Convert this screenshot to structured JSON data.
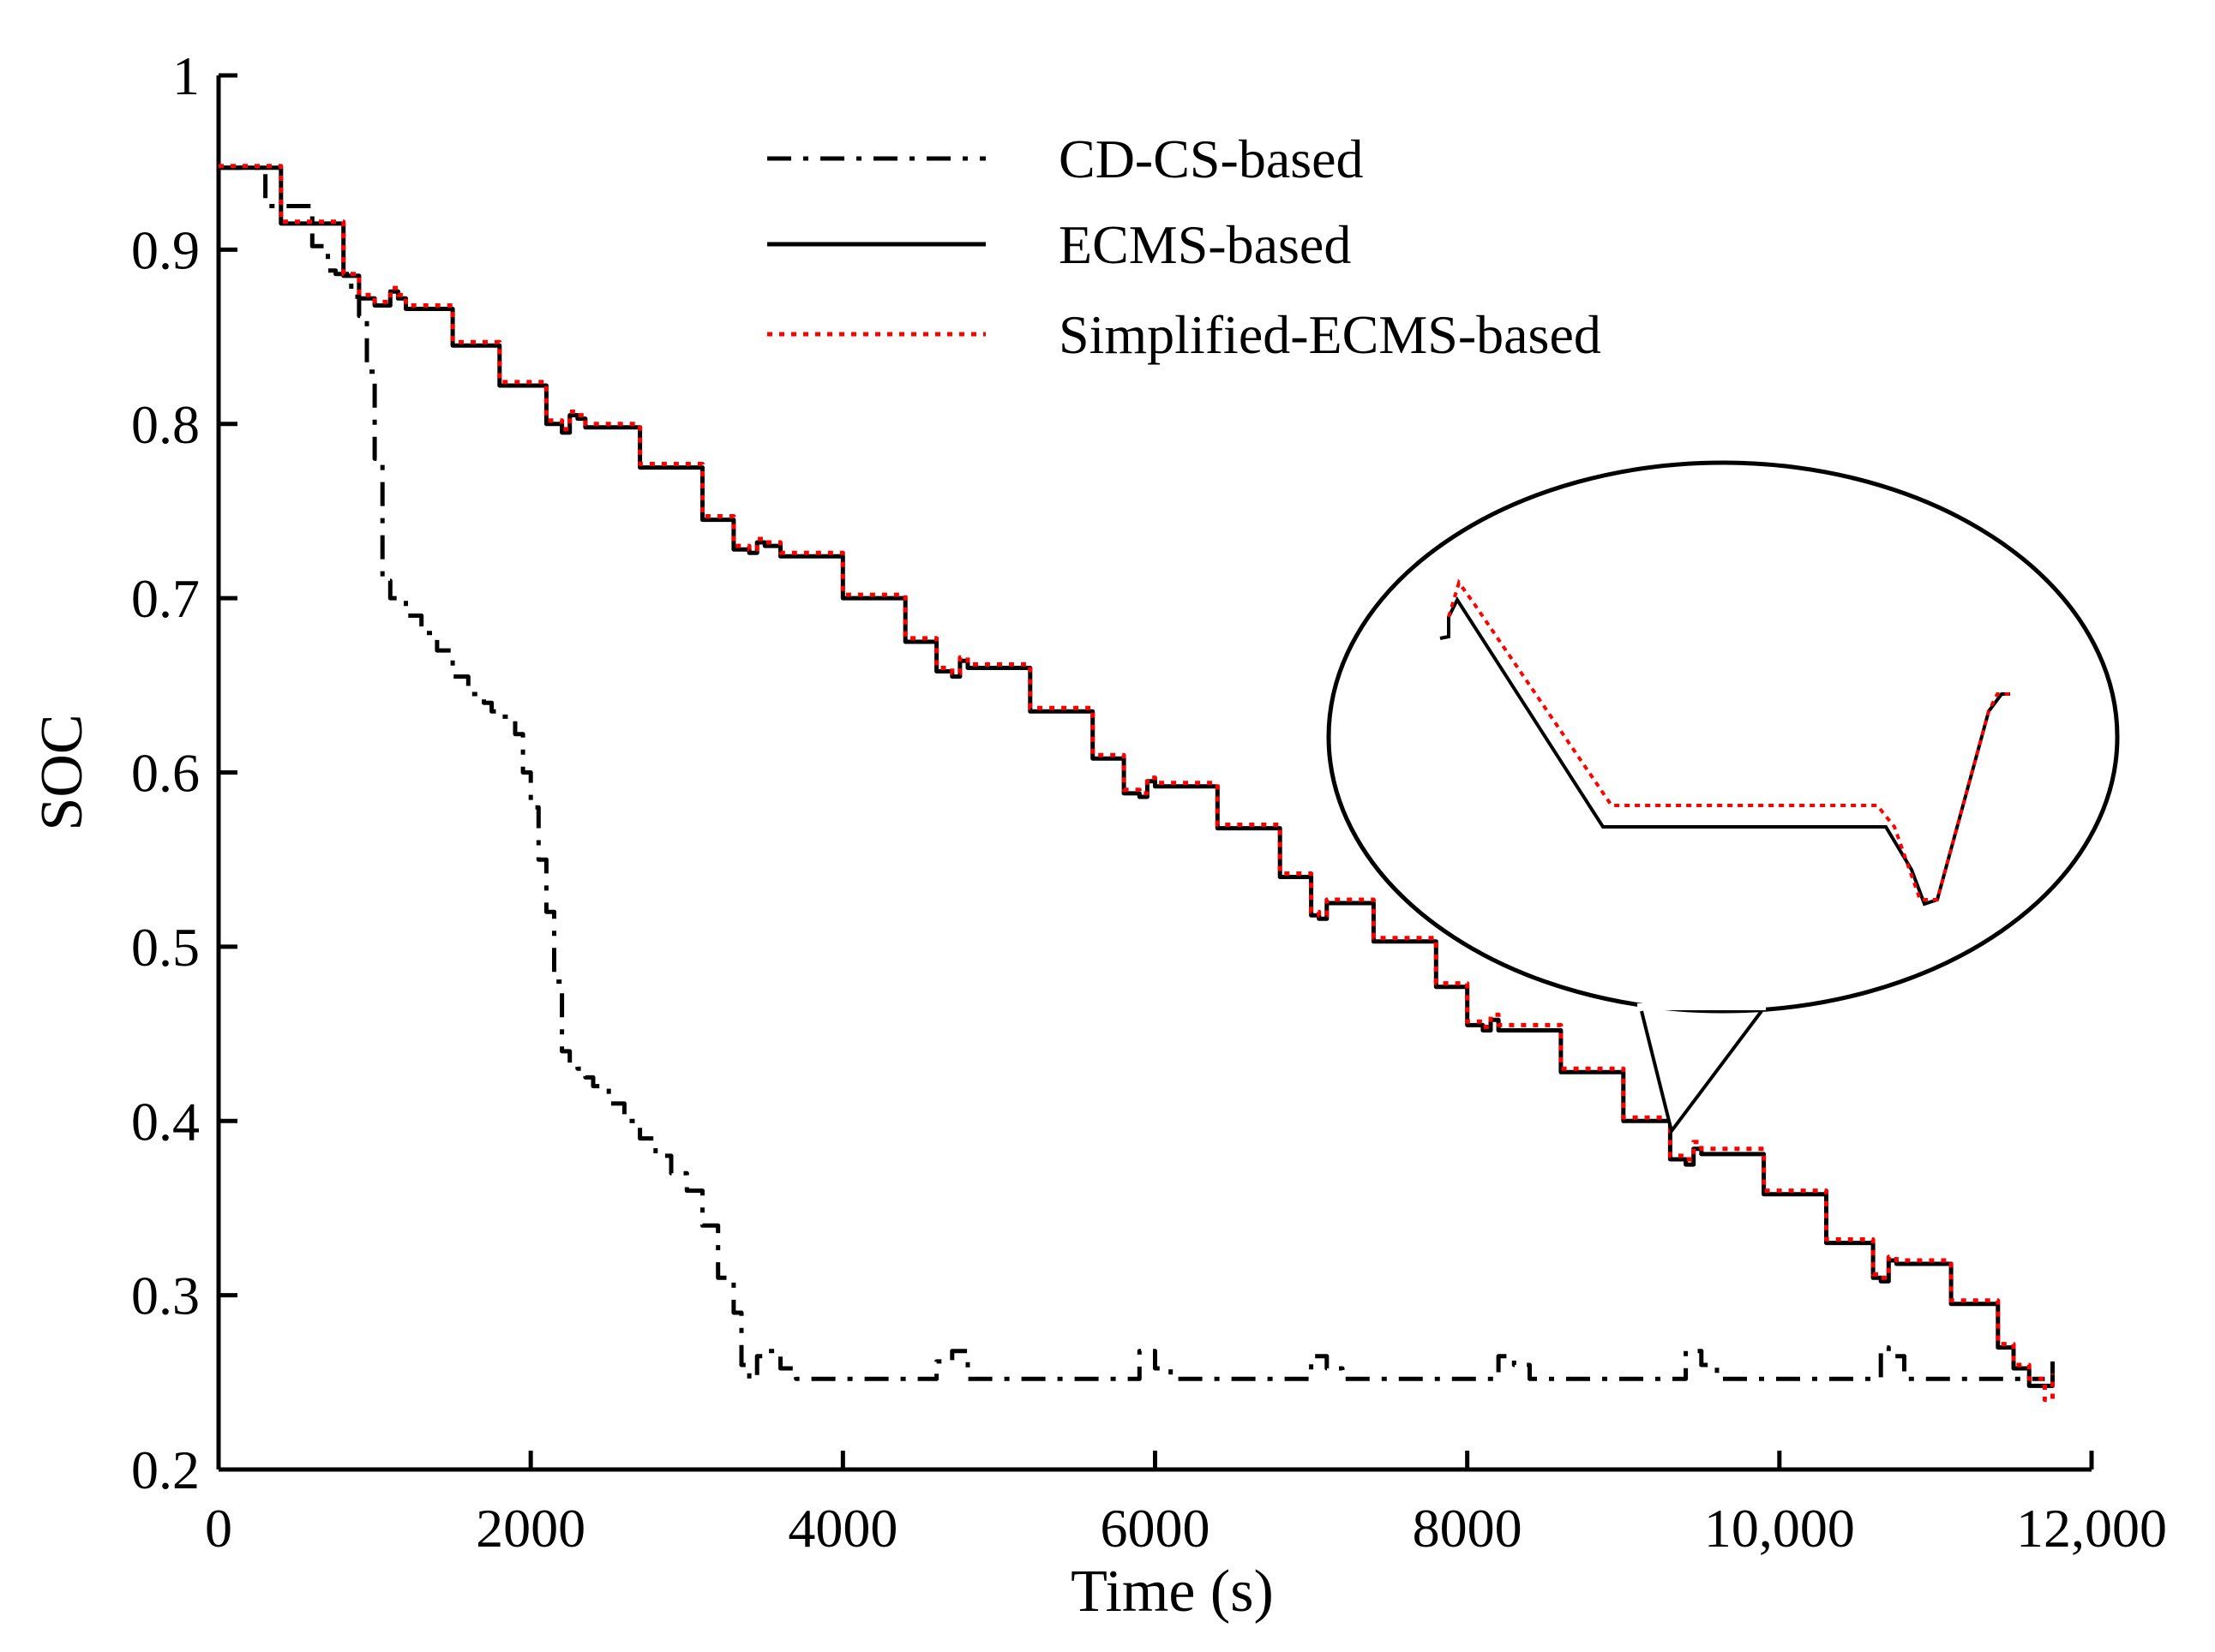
{
  "chart_data": {
    "type": "line",
    "title": "",
    "xlabel": "Time (s)",
    "ylabel": "SOC",
    "xlim": [
      0,
      12000
    ],
    "ylim": [
      0.2,
      1.0
    ],
    "xticks": [
      0,
      2000,
      4000,
      6000,
      8000,
      10000,
      12000
    ],
    "xtick_labels": [
      "0",
      "2000",
      "4000",
      "6000",
      "8000",
      "10,000",
      "12,000"
    ],
    "yticks": [
      0.2,
      0.3,
      0.4,
      0.5,
      0.6,
      0.7,
      0.8,
      0.9,
      1.0
    ],
    "ytick_labels": [
      "0.2",
      "0.3",
      "0.4",
      "0.5",
      "0.6",
      "0.7",
      "0.8",
      "0.9",
      "1"
    ],
    "grid": false,
    "legend_position": "top-center",
    "series": [
      {
        "name": "CD-CS-based",
        "style": "dashdot",
        "color": "#000000",
        "x": [
          0,
          300,
          600,
          700,
          750,
          850,
          900,
          950,
          1000,
          1050,
          1100,
          1200,
          1300,
          1400,
          1500,
          1600,
          1700,
          1750,
          1800,
          1900,
          1950,
          2000,
          2050,
          2100,
          2150,
          2200,
          2250,
          2300,
          2350,
          2400,
          2500,
          2600,
          2700,
          2800,
          2900,
          3000,
          3100,
          3200,
          3300,
          3350,
          3400,
          3450,
          3500,
          3600,
          3700,
          4000,
          4500,
          4600,
          4700,
          4800,
          5800,
          5900,
          6000,
          6100,
          6900,
          7000,
          7100,
          7200,
          8100,
          8200,
          8300,
          8400,
          9300,
          9400,
          9500,
          9600,
          10600,
          10650,
          10700,
          10800,
          11700
        ],
        "y": [
          0.947,
          0.925,
          0.902,
          0.888,
          0.886,
          0.873,
          0.862,
          0.83,
          0.78,
          0.71,
          0.7,
          0.69,
          0.68,
          0.67,
          0.655,
          0.645,
          0.64,
          0.635,
          0.632,
          0.622,
          0.6,
          0.58,
          0.55,
          0.52,
          0.48,
          0.44,
          0.432,
          0.43,
          0.425,
          0.42,
          0.41,
          0.4,
          0.39,
          0.38,
          0.37,
          0.36,
          0.34,
          0.31,
          0.29,
          0.26,
          0.252,
          0.265,
          0.268,
          0.258,
          0.252,
          0.252,
          0.252,
          0.262,
          0.268,
          0.252,
          0.252,
          0.268,
          0.258,
          0.252,
          0.252,
          0.265,
          0.258,
          0.252,
          0.252,
          0.265,
          0.26,
          0.252,
          0.252,
          0.268,
          0.26,
          0.252,
          0.252,
          0.27,
          0.265,
          0.252,
          0.252
        ]
      },
      {
        "name": "ECMS-based",
        "style": "solid",
        "color": "#000000",
        "x": [
          0,
          400,
          800,
          900,
          1000,
          1100,
          1150,
          1200,
          1500,
          1800,
          2100,
          2200,
          2250,
          2300,
          2350,
          2700,
          3100,
          3300,
          3400,
          3450,
          3500,
          3600,
          4000,
          4400,
          4600,
          4700,
          4750,
          4800,
          5200,
          5600,
          5800,
          5900,
          5950,
          6000,
          6400,
          6800,
          7000,
          7050,
          7100,
          7400,
          7800,
          8000,
          8100,
          8150,
          8200,
          8600,
          9000,
          9300,
          9400,
          9450,
          9500,
          9900,
          10300,
          10600,
          10650,
          10700,
          10750,
          11100,
          11400,
          11500,
          11600,
          11700,
          11750
        ],
        "y": [
          0.947,
          0.915,
          0.885,
          0.872,
          0.868,
          0.876,
          0.872,
          0.866,
          0.845,
          0.822,
          0.8,
          0.795,
          0.805,
          0.803,
          0.798,
          0.775,
          0.745,
          0.728,
          0.726,
          0.732,
          0.73,
          0.724,
          0.7,
          0.675,
          0.658,
          0.655,
          0.664,
          0.66,
          0.635,
          0.608,
          0.588,
          0.586,
          0.595,
          0.592,
          0.568,
          0.54,
          0.518,
          0.516,
          0.525,
          0.503,
          0.477,
          0.455,
          0.452,
          0.458,
          0.452,
          0.428,
          0.4,
          0.378,
          0.375,
          0.384,
          0.381,
          0.358,
          0.33,
          0.31,
          0.308,
          0.32,
          0.318,
          0.295,
          0.27,
          0.258,
          0.248,
          0.248,
          0.262
        ]
      },
      {
        "name": "Simplified-ECMS-based",
        "style": "dotted",
        "color": "#ff0000",
        "x": [
          0,
          400,
          800,
          900,
          1000,
          1100,
          1150,
          1200,
          1500,
          1800,
          2100,
          2200,
          2250,
          2300,
          2350,
          2700,
          3100,
          3300,
          3400,
          3450,
          3500,
          3600,
          4000,
          4400,
          4600,
          4700,
          4750,
          4800,
          5200,
          5600,
          5800,
          5900,
          5950,
          6000,
          6400,
          6800,
          7000,
          7050,
          7100,
          7400,
          7800,
          8000,
          8100,
          8150,
          8200,
          8600,
          9000,
          9300,
          9400,
          9450,
          9500,
          9900,
          10300,
          10600,
          10650,
          10700,
          10750,
          11100,
          11400,
          11500,
          11600,
          11700,
          11750
        ],
        "y": [
          0.948,
          0.916,
          0.886,
          0.874,
          0.87,
          0.878,
          0.874,
          0.868,
          0.847,
          0.824,
          0.802,
          0.797,
          0.807,
          0.805,
          0.8,
          0.777,
          0.747,
          0.73,
          0.728,
          0.734,
          0.732,
          0.726,
          0.702,
          0.677,
          0.66,
          0.657,
          0.666,
          0.662,
          0.637,
          0.61,
          0.59,
          0.588,
          0.597,
          0.594,
          0.57,
          0.542,
          0.52,
          0.518,
          0.527,
          0.505,
          0.479,
          0.457,
          0.454,
          0.461,
          0.455,
          0.43,
          0.402,
          0.38,
          0.378,
          0.388,
          0.384,
          0.36,
          0.332,
          0.312,
          0.31,
          0.322,
          0.32,
          0.297,
          0.272,
          0.26,
          0.252,
          0.24,
          0.255
        ]
      }
    ]
  }
}
